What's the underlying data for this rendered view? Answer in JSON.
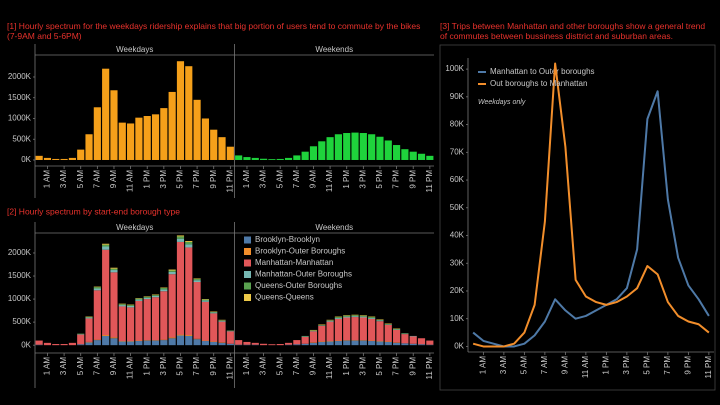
{
  "chart_data": [
    {
      "type": "bar",
      "title": "[1] Hourly spectrum for the weekdays ridership  explains that big portion of users tend to commute by the bikes (7-9AM and 5-6PM)",
      "categories": [
        null,
        "1 AM",
        null,
        "3 AM",
        null,
        "5 AM",
        null,
        "7 AM",
        null,
        "9 AM",
        null,
        "11 AM",
        null,
        "1 PM",
        null,
        "3 PM",
        null,
        "5 PM",
        null,
        "7 PM",
        null,
        "9 PM",
        null,
        "11 PM"
      ],
      "panels": [
        {
          "name": "Weekdays",
          "color": "#f5a01a",
          "values": [
            100,
            50,
            25,
            25,
            50,
            250,
            620,
            1270,
            2200,
            1680,
            900,
            880,
            1020,
            1060,
            1100,
            1250,
            1640,
            2380,
            2260,
            1450,
            1000,
            730,
            550,
            320
          ]
        },
        {
          "name": "Weekends",
          "color": "#1fd33c",
          "values": [
            110,
            70,
            50,
            30,
            20,
            25,
            50,
            110,
            200,
            330,
            450,
            550,
            620,
            650,
            660,
            650,
            620,
            560,
            470,
            360,
            260,
            200,
            150,
            100
          ]
        }
      ],
      "ylim": [
        -145,
        2530
      ],
      "yticks": [
        {
          "value": 0,
          "label": "0K"
        },
        {
          "value": 500,
          "label": "500K"
        },
        {
          "value": 1000,
          "label": "1000K"
        },
        {
          "value": 1500,
          "label": "1500K"
        },
        {
          "value": 2000,
          "label": "2000K"
        }
      ]
    },
    {
      "type": "stacked_bar",
      "title": "[2] Hourly spectrum by start-end borough type",
      "categories": [
        null,
        "1 AM",
        null,
        "3 AM",
        null,
        "5 AM",
        null,
        "7 AM",
        null,
        "9 AM",
        null,
        "11 AM",
        null,
        "1 PM",
        null,
        "3 PM",
        null,
        "5 PM",
        null,
        "7 PM",
        null,
        "9 PM",
        null,
        "11 PM"
      ],
      "panels": [
        "Weekdays",
        "Weekends"
      ],
      "series": [
        {
          "name": "Brooklyn-Brooklyn",
          "color": "#4e79a7",
          "values": [
            [
              10,
              0,
              0,
              0,
              0,
              20,
              60,
              110,
              200,
              150,
              80,
              80,
              90,
              100,
              100,
              110,
              150,
              210,
              200,
              130,
              90,
              70,
              50,
              30
            ],
            [
              10,
              10,
              10,
              0,
              0,
              0,
              10,
              20,
              30,
              50,
              70,
              80,
              90,
              100,
              100,
              100,
              90,
              80,
              70,
              50,
              40,
              30,
              20,
              10
            ]
          ]
        },
        {
          "name": "Brooklyn-Outer Boroughs",
          "color": "#f28e2b",
          "values": [
            [
              0,
              0,
              0,
              0,
              0,
              0,
              10,
              10,
              20,
              20,
              10,
              10,
              10,
              10,
              10,
              10,
              20,
              20,
              20,
              10,
              10,
              10,
              10,
              0
            ],
            [
              0,
              0,
              0,
              0,
              0,
              0,
              0,
              0,
              0,
              10,
              10,
              10,
              10,
              10,
              10,
              10,
              10,
              10,
              10,
              10,
              0,
              0,
              0,
              0
            ]
          ]
        },
        {
          "name": "Manhattan-Manhattan",
          "color": "#e15759",
          "values": [
            [
              90,
              50,
              25,
              25,
              50,
              210,
              510,
              1070,
              1850,
              1410,
              750,
              730,
              860,
              890,
              930,
              1050,
              1370,
              2010,
              1900,
              1230,
              840,
              610,
              450,
              270
            ],
            [
              100,
              60,
              40,
              30,
              20,
              25,
              40,
              90,
              150,
              240,
              340,
              420,
              470,
              490,
              500,
              490,
              470,
              430,
              360,
              270,
              200,
              160,
              130,
              90
            ]
          ]
        },
        {
          "name": "Manhattan-Outer Boroughs",
          "color": "#76b7b2",
          "values": [
            [
              0,
              0,
              0,
              0,
              0,
              10,
              20,
              40,
              70,
              50,
              30,
              30,
              30,
              30,
              30,
              40,
              50,
              70,
              70,
              40,
              30,
              20,
              20,
              10
            ],
            [
              0,
              0,
              0,
              0,
              0,
              0,
              0,
              0,
              10,
              10,
              10,
              20,
              20,
              20,
              20,
              20,
              20,
              20,
              10,
              10,
              10,
              10,
              0,
              0
            ]
          ]
        },
        {
          "name": "Queens-Outer Boroughs",
          "color": "#59a14f",
          "values": [
            [
              0,
              0,
              0,
              0,
              0,
              10,
              10,
              30,
              40,
              30,
              20,
              20,
              20,
              20,
              20,
              30,
              30,
              50,
              50,
              30,
              20,
              10,
              10,
              10
            ],
            [
              0,
              0,
              0,
              0,
              0,
              0,
              0,
              0,
              10,
              10,
              10,
              10,
              20,
              20,
              20,
              20,
              20,
              10,
              10,
              10,
              10,
              0,
              0,
              0
            ]
          ]
        },
        {
          "name": "Queens-Queens",
          "color": "#edc948",
          "values": [
            [
              0,
              0,
              0,
              0,
              0,
              0,
              10,
              10,
              20,
              20,
              10,
              10,
              10,
              10,
              10,
              10,
              20,
              20,
              20,
              10,
              10,
              10,
              10,
              0
            ],
            [
              0,
              0,
              0,
              0,
              0,
              0,
              0,
              0,
              0,
              10,
              10,
              10,
              10,
              10,
              10,
              10,
              10,
              10,
              10,
              10,
              0,
              0,
              0,
              0
            ]
          ]
        }
      ],
      "ylim": [
        -170,
        2390
      ],
      "yticks": [
        {
          "value": 0,
          "label": "0K"
        },
        {
          "value": 500,
          "label": "500K"
        },
        {
          "value": 1000,
          "label": "1000K"
        },
        {
          "value": 1500,
          "label": "1500K"
        },
        {
          "value": 2000,
          "label": "2000K"
        }
      ]
    },
    {
      "type": "line",
      "title": "[3] Trips between Manhattan and other boroughs show a general trend of commutes between bussiness disttrict and suburban areas.",
      "annotation": "Weekdays only",
      "categories": [
        null,
        "1 AM",
        null,
        "3 AM",
        null,
        "5 AM",
        null,
        "7 AM",
        null,
        "9 AM",
        null,
        "11 AM",
        null,
        "1 PM",
        null,
        "3 PM",
        null,
        "5 PM",
        null,
        "7 PM",
        null,
        "9 PM",
        null,
        "11 PM"
      ],
      "series": [
        {
          "name": "Manhattan to Outer boroughs",
          "color": "#4e79a7",
          "values": [
            5,
            2,
            1,
            0,
            0,
            1,
            4,
            9,
            17,
            13,
            10,
            11,
            13,
            15,
            17,
            21,
            35,
            82,
            92,
            53,
            32,
            22,
            17,
            11
          ]
        },
        {
          "name": "Out boroughs to Manhattan",
          "color": "#f28e2b",
          "values": [
            1,
            0,
            0,
            0,
            1,
            5,
            15,
            45,
            102,
            72,
            24,
            18,
            16,
            15,
            16,
            18,
            21,
            29,
            26,
            16,
            11,
            9,
            8,
            5
          ]
        }
      ],
      "ylim": [
        -2,
        104
      ],
      "yticks": [
        {
          "value": 0,
          "label": "0K"
        },
        {
          "value": 10,
          "label": "10K"
        },
        {
          "value": 20,
          "label": "20K"
        },
        {
          "value": 30,
          "label": "30K"
        },
        {
          "value": 40,
          "label": "40K"
        },
        {
          "value": 50,
          "label": "50K"
        },
        {
          "value": 60,
          "label": "60K"
        },
        {
          "value": 70,
          "label": "70K"
        },
        {
          "value": 80,
          "label": "80K"
        },
        {
          "value": 90,
          "label": "90K"
        },
        {
          "value": 100,
          "label": "100K"
        }
      ]
    }
  ]
}
